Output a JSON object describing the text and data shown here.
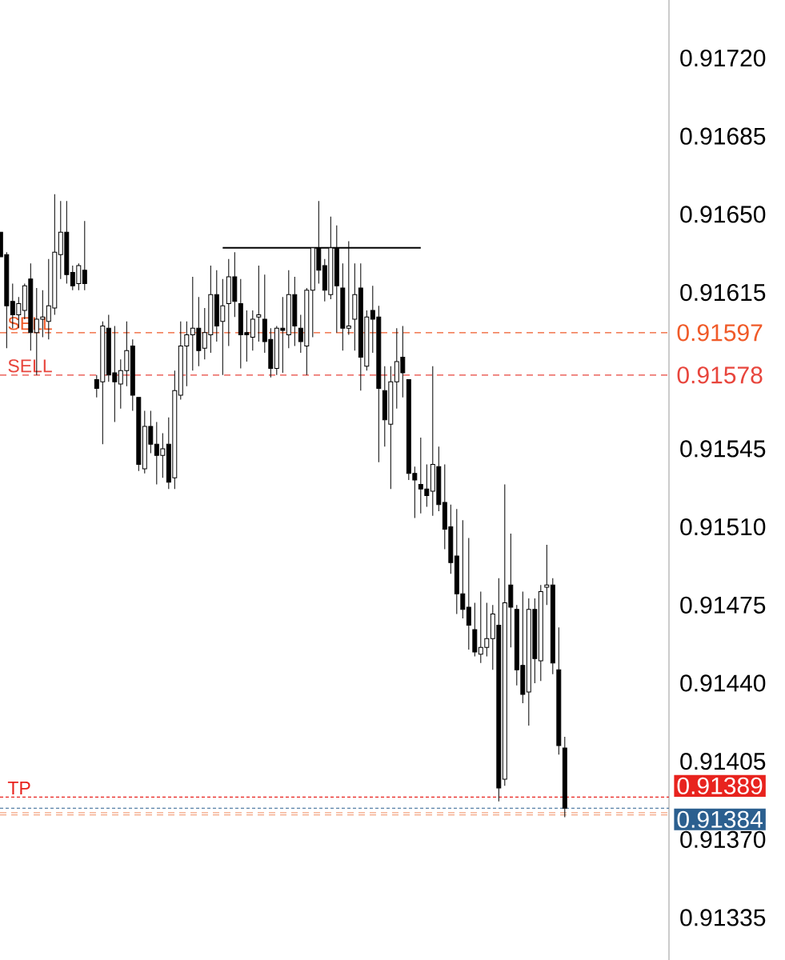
{
  "chart_data": {
    "type": "candlestick",
    "categories": [
      null,
      null,
      null,
      null,
      null,
      null,
      null,
      null,
      null,
      null,
      null,
      null,
      null,
      null,
      null,
      null,
      null,
      null,
      null,
      null,
      null,
      null,
      null,
      null,
      null,
      null,
      null,
      null,
      null,
      null,
      null,
      null,
      null,
      null,
      null,
      null,
      null,
      null,
      null,
      null,
      null,
      null,
      null,
      null,
      null,
      null,
      null,
      null,
      null,
      null,
      null,
      null,
      null,
      null,
      null,
      null,
      null,
      null,
      null,
      null,
      null,
      null,
      null,
      null,
      null,
      null,
      null,
      null,
      null,
      null,
      null,
      null,
      null,
      null,
      null,
      null,
      null,
      null,
      null,
      null,
      null,
      null,
      null,
      null,
      null,
      null,
      null,
      null,
      null,
      null,
      null,
      null,
      null,
      null,
      null
    ],
    "ohlc": [
      [
        0.91642,
        0.91642,
        0.91631,
        0.91631
      ],
      [
        0.91632,
        0.91633,
        0.9159,
        0.91609
      ],
      [
        0.91611,
        0.91619,
        0.91599,
        0.91605
      ],
      [
        0.91605,
        0.91613,
        0.91599,
        0.9161
      ],
      [
        0.91607,
        0.91619,
        0.91603,
        0.91618
      ],
      [
        0.91621,
        0.91628,
        0.91589,
        0.91597
      ],
      [
        0.91597,
        0.91617,
        0.91578,
        0.91603
      ],
      [
        0.91603,
        0.91616,
        0.91595,
        0.91604
      ],
      [
        0.91602,
        0.9163,
        0.91594,
        0.91609
      ],
      [
        0.91608,
        0.91659,
        0.91605,
        0.91633
      ],
      [
        0.91632,
        0.91656,
        0.91621,
        0.91642
      ],
      [
        0.91642,
        0.91656,
        0.91619,
        0.91623
      ],
      [
        0.91624,
        0.91627,
        0.91616,
        0.91618
      ],
      [
        0.91619,
        0.91628,
        0.91616,
        0.91627
      ],
      [
        0.91625,
        0.91647,
        0.91616,
        0.91619
      ],
      null,
      [
        0.91576,
        0.91578,
        0.91568,
        0.91572
      ],
      [
        0.91575,
        0.91602,
        0.91547,
        0.916
      ],
      [
        0.91599,
        0.91605,
        0.91575,
        0.91578
      ],
      [
        0.91579,
        0.916,
        0.91557,
        0.91575
      ],
      [
        0.91574,
        0.91585,
        0.91563,
        0.9158
      ],
      [
        0.9158,
        0.91602,
        0.91573,
        0.91589
      ],
      [
        0.91591,
        0.91594,
        0.91562,
        0.91569
      ],
      [
        0.91568,
        0.91568,
        0.91535,
        0.91538
      ],
      [
        0.91536,
        0.91562,
        0.91534,
        0.91555
      ],
      [
        0.91555,
        0.91562,
        0.91543,
        0.91547
      ],
      [
        0.91547,
        0.91557,
        0.91529,
        0.91542
      ],
      [
        0.91542,
        0.91552,
        0.91532,
        0.91545
      ],
      [
        0.91547,
        0.91559,
        0.91527,
        0.9153
      ],
      [
        0.91532,
        0.9158,
        0.91527,
        0.91571
      ],
      [
        0.91569,
        0.91602,
        0.91567,
        0.91591
      ],
      [
        0.91591,
        0.91602,
        0.91573,
        0.91596
      ],
      [
        0.91596,
        0.91622,
        0.9158,
        0.91599
      ],
      [
        0.91599,
        0.91613,
        0.91582,
        0.91589
      ],
      [
        0.9159,
        0.91608,
        0.91585,
        0.91597
      ],
      [
        0.91596,
        0.91627,
        0.91588,
        0.91614
      ],
      [
        0.91614,
        0.91625,
        0.91593,
        0.916
      ],
      [
        0.91602,
        0.91621,
        0.91578,
        0.91609
      ],
      [
        0.9161,
        0.9163,
        0.91591,
        0.91622
      ],
      [
        0.91622,
        0.91633,
        0.91604,
        0.91611
      ],
      [
        0.9161,
        0.91621,
        0.91581,
        0.91596
      ],
      [
        0.91597,
        0.91607,
        0.91584,
        0.91596
      ],
      [
        0.91595,
        0.91607,
        0.91589,
        0.91603
      ],
      [
        0.91604,
        0.91627,
        0.91593,
        0.91605
      ],
      [
        0.91603,
        0.91623,
        0.91588,
        0.91593
      ],
      [
        0.91594,
        0.91599,
        0.91577,
        0.91581
      ],
      [
        0.91581,
        0.916,
        0.91578,
        0.91599
      ],
      [
        0.91599,
        0.91613,
        0.91579,
        0.91598
      ],
      [
        0.91596,
        0.91625,
        0.9159,
        0.91614
      ],
      [
        0.91614,
        0.91622,
        0.91591,
        0.916
      ],
      [
        0.91599,
        0.91605,
        0.91588,
        0.91593
      ],
      [
        0.91591,
        0.91617,
        0.91578,
        0.91616
      ],
      [
        0.91616,
        0.91635,
        0.91595,
        0.91635
      ],
      [
        0.91635,
        0.91656,
        0.91619,
        0.91625
      ],
      [
        0.91627,
        0.9163,
        0.91611,
        0.91616
      ],
      [
        0.91614,
        0.91649,
        0.91612,
        0.91635
      ],
      [
        0.91635,
        0.91645,
        0.91597,
        0.91618
      ],
      [
        0.91617,
        0.91628,
        0.91589,
        0.91599
      ],
      [
        0.91599,
        0.91638,
        0.91596,
        0.916
      ],
      [
        0.91603,
        0.91628,
        0.91589,
        0.91614
      ],
      [
        0.91617,
        0.91628,
        0.91571,
        0.91586
      ],
      [
        0.91582,
        0.91607,
        0.9158,
        0.91604
      ],
      [
        0.91607,
        0.91618,
        0.91588,
        0.91603
      ],
      [
        0.91604,
        0.91609,
        0.91539,
        0.91572
      ],
      [
        0.91571,
        0.91582,
        0.91546,
        0.91558
      ],
      [
        0.91556,
        0.91582,
        0.91527,
        0.91575
      ],
      [
        0.91575,
        0.91599,
        0.91563,
        0.91584
      ],
      [
        0.91586,
        0.916,
        0.91568,
        0.91579
      ],
      [
        0.91576,
        0.91576,
        0.91531,
        0.91534
      ],
      [
        0.91534,
        0.91537,
        0.91514,
        0.91531
      ],
      [
        0.91529,
        0.9155,
        0.91516,
        0.91527
      ],
      [
        0.91527,
        0.91538,
        0.91519,
        0.91524
      ],
      [
        0.91526,
        0.91582,
        0.91515,
        0.91538
      ],
      [
        0.91537,
        0.91546,
        0.91517,
        0.9152
      ],
      [
        0.91521,
        0.91538,
        0.915,
        0.91509
      ],
      [
        0.9151,
        0.9152,
        0.91489,
        0.91494
      ],
      [
        0.91497,
        0.91518,
        0.91471,
        0.9148
      ],
      [
        0.9148,
        0.91513,
        0.91469,
        0.91473
      ],
      [
        0.91474,
        0.91505,
        0.91455,
        0.91466
      ],
      [
        0.91464,
        0.91476,
        0.91452,
        0.91454
      ],
      [
        0.91453,
        0.91481,
        0.91449,
        0.91456
      ],
      [
        0.91456,
        0.91476,
        0.91452,
        0.9146
      ],
      [
        0.9146,
        0.91475,
        0.91446,
        0.91471
      ],
      [
        0.91466,
        0.91487,
        0.91387,
        0.91393
      ],
      [
        0.91397,
        0.91529,
        0.91394,
        0.91476
      ],
      [
        0.91484,
        0.91507,
        0.91456,
        0.91474
      ],
      [
        0.91473,
        0.91475,
        0.91439,
        0.91446
      ],
      [
        0.91448,
        0.91481,
        0.91431,
        0.91435
      ],
      [
        0.91436,
        0.91478,
        0.91421,
        0.91473
      ],
      [
        0.91473,
        0.91478,
        0.9144,
        0.91451
      ],
      [
        0.9145,
        0.91484,
        0.91441,
        0.91481
      ],
      [
        0.91483,
        0.91502,
        0.91475,
        0.91484
      ],
      [
        0.91484,
        0.91487,
        0.91444,
        0.91449
      ],
      [
        0.91446,
        0.91465,
        0.91408,
        0.91412
      ],
      [
        0.91411,
        0.91416,
        0.9138,
        0.91384
      ]
    ],
    "series": [
      {
        "type": "line",
        "values": [
          null,
          null,
          null,
          null,
          null,
          null,
          null,
          null,
          null,
          null,
          null,
          null,
          null,
          null,
          null,
          null,
          null,
          null,
          null,
          null,
          null,
          null,
          null,
          null,
          null,
          null,
          null,
          null,
          null,
          null,
          null,
          null,
          null,
          null,
          null,
          null,
          null,
          0.91635,
          0.91635,
          0.91635,
          0.91635,
          0.91635,
          0.91635,
          0.91635,
          0.91635,
          0.91635,
          0.91635,
          0.91635,
          0.91635,
          0.91635,
          0.91635,
          0.91635,
          0.91635,
          0.91635,
          0.91635,
          0.91635,
          0.91635,
          0.91635,
          0.91635,
          0.91635,
          0.91635,
          0.91635,
          0.91635,
          0.91635,
          0.91635,
          0.91635,
          0.91635,
          0.91635,
          0.91635,
          0.91635,
          0.91635,
          null,
          null,
          null,
          null,
          null,
          null,
          null,
          null,
          null,
          null,
          null,
          null,
          null,
          null,
          null,
          null,
          null,
          null,
          null,
          null,
          null,
          null,
          null,
          null
        ],
        "color": "#000000"
      }
    ],
    "ylim": [
      0.91316,
      0.91746
    ],
    "yticks": [
      {
        "value": 0.9172,
        "label": "0.91720"
      },
      0.91685,
      {
        "value": 0.9165,
        "label": "0.91650"
      },
      0.91615,
      0.91545,
      {
        "value": 0.9151,
        "label": "0.91510"
      },
      0.91475,
      {
        "value": 0.9144,
        "label": "0.91440"
      },
      0.91405,
      {
        "value": 0.9137,
        "label": "0.91370"
      },
      0.91335
    ],
    "tick_labels": "y",
    "ref_lines": [
      {
        "axis": "y",
        "value": 0.91597,
        "label": "SELL",
        "color": "#f05a28",
        "line_style": "dashed"
      },
      {
        "axis": "y",
        "value": 0.91578,
        "label": "SELL",
        "color": "#e8453c",
        "line_style": "dashed"
      },
      {
        "axis": "y",
        "value": 0.91389,
        "label": "TP",
        "color": "#e8231e",
        "line_style": "dotted"
      },
      {
        "axis": "y",
        "value": 0.91384,
        "color": "#2b5f8f",
        "line_style": "dotted"
      },
      {
        "axis": "y",
        "value": 0.91382,
        "color": "#f4a582",
        "line_style": "dashed"
      },
      {
        "axis": "y",
        "value": 0.91381,
        "color": "#f4a582",
        "line_style": "dashed"
      }
    ],
    "annotations": [
      "0.91597",
      "0.91578",
      "0.91389",
      "0.91384"
    ]
  }
}
